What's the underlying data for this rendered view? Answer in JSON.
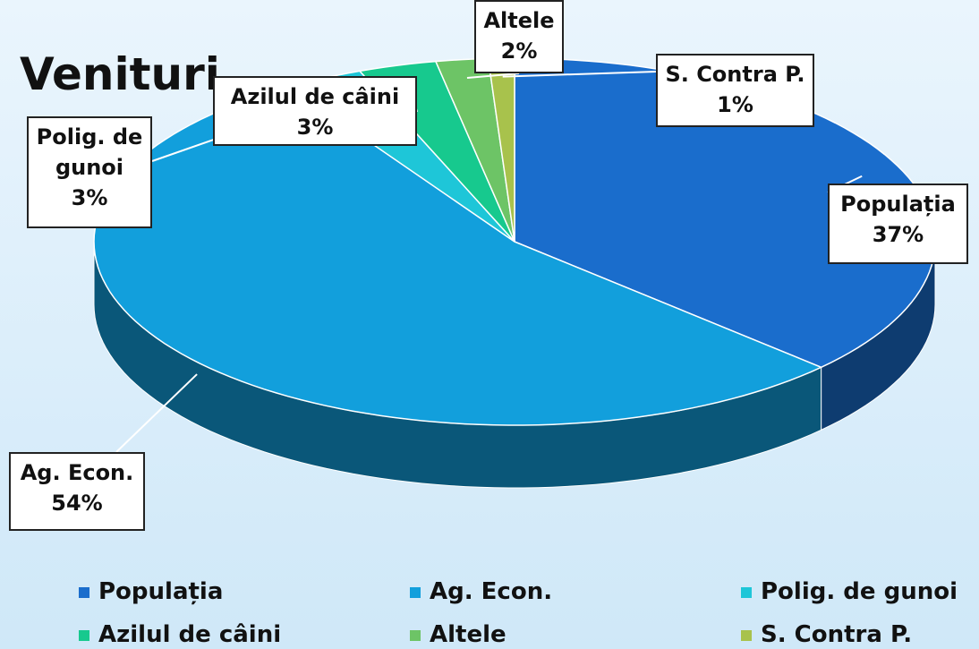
{
  "chart_data": {
    "type": "pie",
    "title": "Venituri",
    "categories": [
      "Populația",
      "Ag. Econ.",
      "Polig. de gunoi",
      "Azilul de câini",
      "Altele",
      "S. Contra P."
    ],
    "values": [
      37,
      54,
      3,
      3,
      2,
      1
    ],
    "value_labels": [
      "37%",
      "54%",
      "3%",
      "3%",
      "2%",
      "1%"
    ],
    "colors": [
      "#1a6dcc",
      "#129fdc",
      "#1ec6d8",
      "#17c98e",
      "#6dc466",
      "#a8c24c"
    ],
    "legend": "bottom"
  }
}
